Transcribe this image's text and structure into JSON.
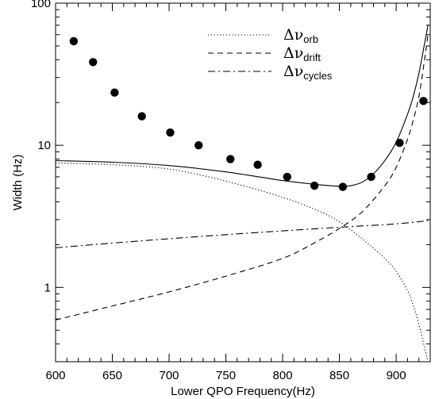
{
  "chart_data": {
    "type": "scatter",
    "title": "",
    "xlabel": "Lower QPO Frequency(Hz)",
    "ylabel": "Width (Hz)",
    "xlim": [
      600,
      930
    ],
    "ylim": [
      0.3,
      100
    ],
    "y_scale": "log",
    "x_ticks": [
      600,
      650,
      700,
      750,
      800,
      850,
      900
    ],
    "y_ticks": [
      1,
      10,
      100
    ],
    "x_tick_labels": [
      "600",
      "650",
      "700",
      "750",
      "800",
      "850",
      "900"
    ],
    "y_tick_labels": [
      "1",
      "10",
      "100"
    ],
    "grid": false,
    "legend_position": "top-right",
    "legend": [
      {
        "symbol": "Δν",
        "sub": "orb",
        "style": "dotted"
      },
      {
        "symbol": "Δν",
        "sub": "drift",
        "style": "dashed"
      },
      {
        "symbol": "Δν",
        "sub": "cycles",
        "style": "dash-dot"
      }
    ],
    "points": {
      "x": [
        616,
        633,
        652,
        676,
        701,
        726,
        754,
        778,
        804,
        828,
        853,
        878,
        903,
        924
      ],
      "y": [
        54.0,
        38.5,
        23.5,
        16.0,
        12.3,
        10.0,
        8.0,
        7.3,
        6.0,
        5.2,
        5.1,
        6.0,
        10.4,
        20.5
      ]
    },
    "series": [
      {
        "style": "solid",
        "x": [
          600,
          650,
          700,
          750,
          800,
          830,
          850,
          860,
          870,
          880,
          890,
          900,
          910,
          915,
          920,
          925,
          928
        ],
        "y": [
          7.8,
          7.6,
          7.2,
          6.5,
          5.65,
          5.3,
          5.15,
          5.2,
          5.5,
          6.3,
          7.8,
          10.5,
          16.5,
          22,
          32,
          52,
          70
        ]
      },
      {
        "style": "dotted",
        "x": [
          600,
          650,
          700,
          750,
          800,
          830,
          850,
          870,
          890,
          900,
          910,
          915,
          920,
          925,
          928
        ],
        "y": [
          7.5,
          7.3,
          6.8,
          5.6,
          4.3,
          3.5,
          2.9,
          2.2,
          1.6,
          1.3,
          0.95,
          0.75,
          0.55,
          0.38,
          0.3
        ]
      },
      {
        "style": "dashed",
        "x": [
          600,
          650,
          700,
          750,
          800,
          830,
          850,
          870,
          890,
          900,
          910,
          915,
          920,
          925,
          928
        ],
        "y": [
          0.59,
          0.74,
          0.93,
          1.2,
          1.6,
          2.1,
          2.6,
          3.4,
          5.2,
          7.0,
          11,
          15,
          22,
          40,
          60
        ]
      },
      {
        "style": "dash-dot",
        "x": [
          600,
          650,
          700,
          750,
          800,
          850,
          900,
          928
        ],
        "y": [
          1.9,
          2.05,
          2.2,
          2.35,
          2.5,
          2.65,
          2.8,
          2.95
        ]
      }
    ]
  }
}
